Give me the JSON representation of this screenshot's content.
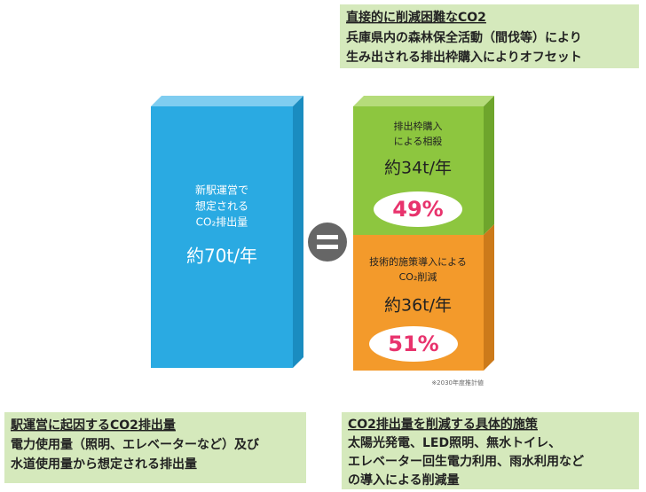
{
  "top_note": {
    "title": "直接的に削減困難なCO2",
    "lines": [
      "兵庫県内の森林保全活動（間伐等）により",
      "生み出される排出枠購入によりオフセット"
    ]
  },
  "left_block": {
    "lines": [
      "新駅運営で",
      "想定される",
      "CO₂排出量"
    ],
    "amount": "約70t/年"
  },
  "offset_block": {
    "lines": [
      "排出枠購入",
      "による相殺"
    ],
    "amount": "約34t/年",
    "share": "49%"
  },
  "reduction_block": {
    "lines": [
      "技術的施策導入による",
      "CO₂削減"
    ],
    "amount": "約36t/年",
    "share": "51%"
  },
  "footnote": "※2030年度推計値",
  "bottom_left": {
    "title": "駅運営に起因するCO2排出量",
    "lines": [
      "電力使用量（照明、エレベーターなど）及び",
      "水道使用量から想定される排出量"
    ]
  },
  "bottom_right": {
    "title": "CO2排出量を削減する具体的施策",
    "lines": [
      "太陽光発電、LED照明、無水トイレ、",
      "エレベーター回生電力利用、雨水利用など",
      "の導入による削減量"
    ]
  }
}
